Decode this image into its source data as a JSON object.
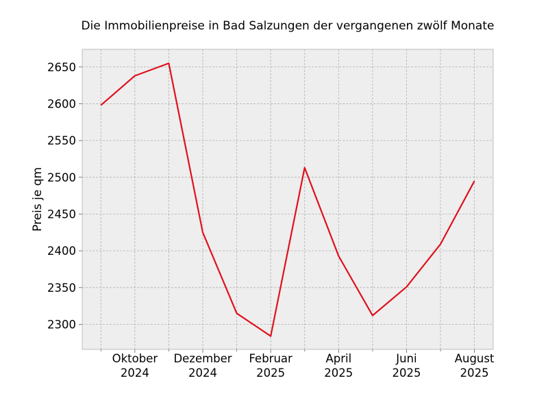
{
  "chart_data": {
    "type": "line",
    "title": "Die Immobilienpreise in Bad Salzungen der vergangenen zwölf Monate",
    "xlabel": "",
    "ylabel": "Preis je qm",
    "grid": true,
    "x": [
      "2024-09",
      "2024-10",
      "2024-11",
      "2024-12",
      "2025-01",
      "2025-02",
      "2025-03",
      "2025-04",
      "2025-05",
      "2025-06",
      "2025-07",
      "2025-08"
    ],
    "x_ticks": [
      {
        "x": "2024-10",
        "label": [
          "Oktober",
          "2024"
        ]
      },
      {
        "x": "2024-12",
        "label": [
          "Dezember",
          "2024"
        ]
      },
      {
        "x": "2025-02",
        "label": [
          "Februar",
          "2025"
        ]
      },
      {
        "x": "2025-04",
        "label": [
          "April",
          "2025"
        ]
      },
      {
        "x": "2025-06",
        "label": [
          "Juni",
          "2025"
        ]
      },
      {
        "x": "2025-08",
        "label": [
          "August",
          "2025"
        ]
      }
    ],
    "y_ticks": [
      2300,
      2350,
      2400,
      2450,
      2500,
      2550,
      2600,
      2650
    ],
    "ylim": [
      2266,
      2674
    ],
    "series": [
      {
        "color": "#e0101c",
        "values": [
          2598,
          2638,
          2655,
          2425,
          2315,
          2284,
          2513,
          2393,
          2312,
          2351,
          2409,
          2495
        ]
      }
    ],
    "colors": {
      "background": "#eeeeee",
      "grid": "#b0b0b0",
      "frame": "#bcbcbc"
    }
  }
}
